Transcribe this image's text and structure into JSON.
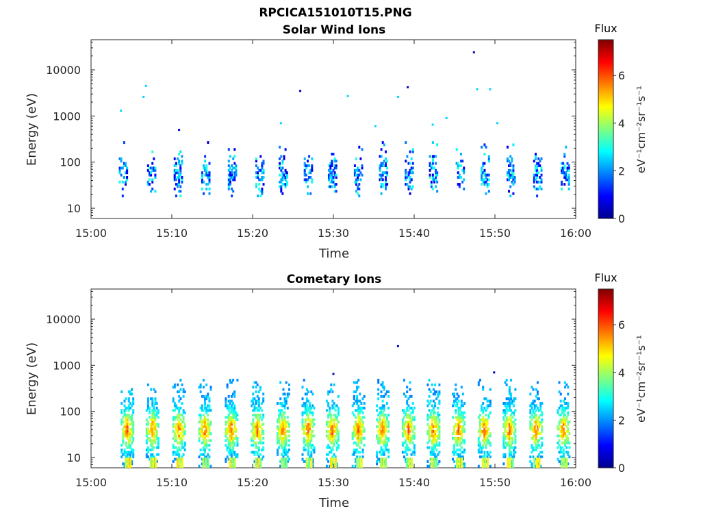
{
  "figure": {
    "file_title": "RPCICA151010T15.PNG"
  },
  "colorbar": {
    "title": "Flux",
    "unit_label": "eV⁻¹cm⁻²sr⁻¹s⁻¹",
    "colormap": "jet",
    "ticks": [
      "0",
      "2",
      "4",
      "6"
    ],
    "range": [
      0,
      7.5
    ]
  },
  "chart_data": [
    {
      "type": "heatmap",
      "title": "Solar Wind Ions",
      "xlabel": "Time",
      "ylabel": "Energy (eV)",
      "x_tick_labels": [
        "15:00",
        "15:10",
        "15:20",
        "15:30",
        "15:40",
        "15:50",
        "16:00"
      ],
      "x_range": [
        "15:00",
        "16:00"
      ],
      "y_scale": "log",
      "y_tick_labels": [
        "10",
        "100",
        "1000",
        "10000"
      ],
      "y_range": [
        6,
        45000
      ],
      "bursts_minutes": [
        4.1,
        7.6,
        10.9,
        14.3,
        17.6,
        21.0,
        23.9,
        27.0,
        30.0,
        33.2,
        36.3,
        39.5,
        42.5,
        45.8,
        48.9,
        52.1,
        55.4,
        58.8
      ],
      "typical_flux": [
        1,
        3
      ],
      "sporadic_points": [
        {
          "time_min": 3.7,
          "energy": 1300,
          "flux": 2.5
        },
        {
          "time_min": 6.5,
          "energy": 2600,
          "flux": 2.5
        },
        {
          "time_min": 6.8,
          "energy": 4500,
          "flux": 2.5
        },
        {
          "time_min": 25.9,
          "energy": 3500,
          "flux": 0.5
        },
        {
          "time_min": 31.8,
          "energy": 2700,
          "flux": 2.5
        },
        {
          "time_min": 35.2,
          "energy": 600,
          "flux": 2.5
        },
        {
          "time_min": 38.0,
          "energy": 2600,
          "flux": 2.5
        },
        {
          "time_min": 39.2,
          "energy": 4200,
          "flux": 0.5
        },
        {
          "time_min": 42.3,
          "energy": 650,
          "flux": 2.5
        },
        {
          "time_min": 44.0,
          "energy": 900,
          "flux": 2.5
        },
        {
          "time_min": 47.4,
          "energy": 24000,
          "flux": 0.5
        },
        {
          "time_min": 47.8,
          "energy": 3800,
          "flux": 2.5
        },
        {
          "time_min": 49.4,
          "energy": 3800,
          "flux": 2.5
        },
        {
          "time_min": 50.3,
          "energy": 700,
          "flux": 2.5
        },
        {
          "time_min": 10.9,
          "energy": 500,
          "flux": 0.5
        },
        {
          "time_min": 23.5,
          "energy": 700,
          "flux": 2.5
        }
      ]
    },
    {
      "type": "heatmap",
      "title": "Cometary Ions",
      "xlabel": "Time",
      "ylabel": "Energy (eV)",
      "x_tick_labels": [
        "15:00",
        "15:10",
        "15:20",
        "15:30",
        "15:40",
        "15:50",
        "16:00"
      ],
      "x_range": [
        "15:00",
        "16:00"
      ],
      "y_scale": "log",
      "y_tick_labels": [
        "10",
        "100",
        "1000",
        "10000"
      ],
      "y_range": [
        6,
        45000
      ],
      "bursts_minutes": [
        4.6,
        7.7,
        11.0,
        14.2,
        17.5,
        20.7,
        23.9,
        27.0,
        30.0,
        33.2,
        36.2,
        39.4,
        42.5,
        45.6,
        48.8,
        51.9,
        55.2,
        58.6
      ],
      "peak_energy": 40,
      "peak_flux": 5.8,
      "energy_extent": [
        6,
        500
      ],
      "sporadic_points": [
        {
          "time_min": 38.0,
          "energy": 2600,
          "flux": 0.5
        },
        {
          "time_min": 49.9,
          "energy": 700,
          "flux": 0.5
        },
        {
          "time_min": 30.0,
          "energy": 650,
          "flux": 0.5
        }
      ]
    }
  ]
}
